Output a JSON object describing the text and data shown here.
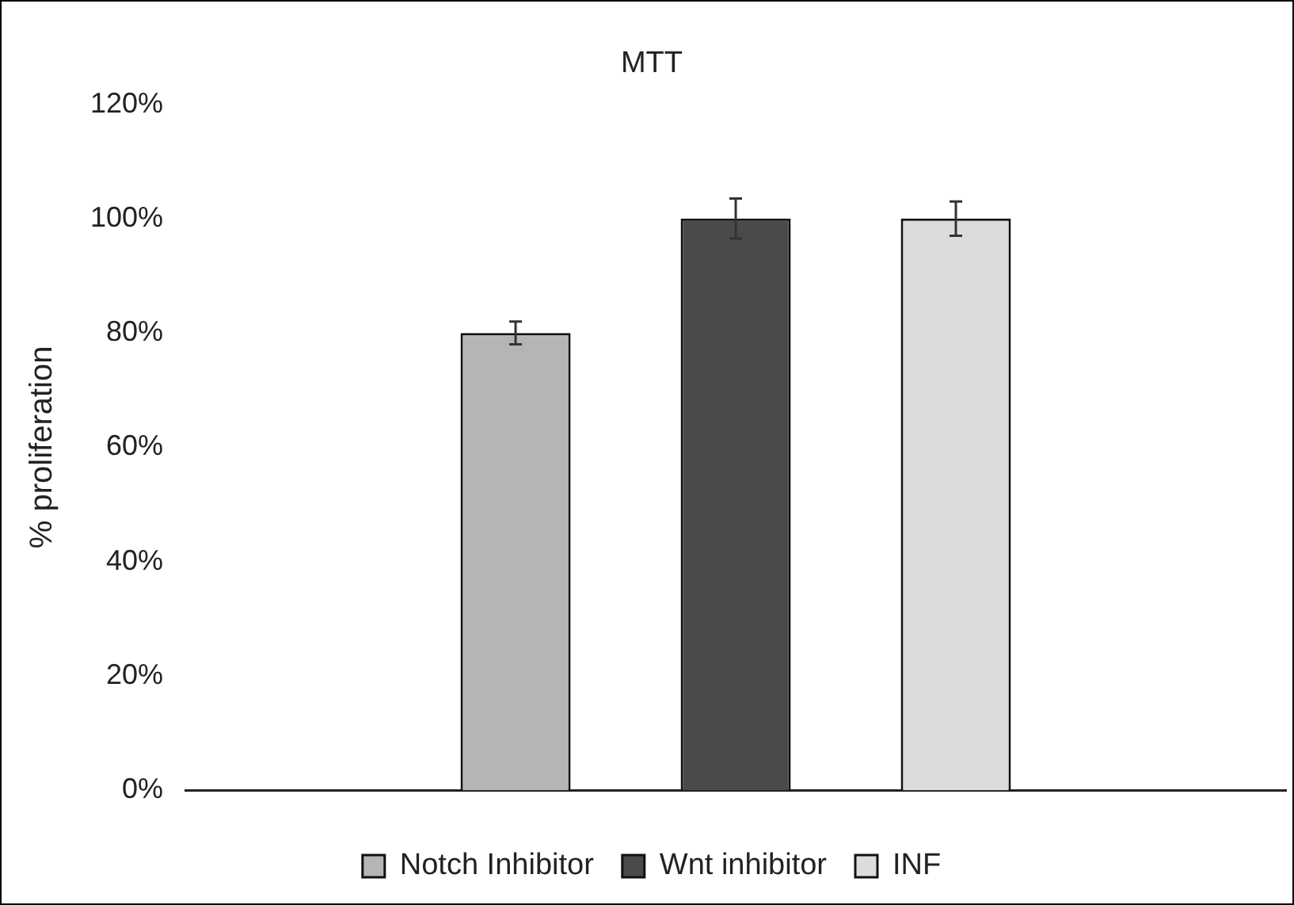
{
  "chart_data": {
    "type": "bar",
    "title": "MTT",
    "ylabel": "% proliferation",
    "categories": [
      null
    ],
    "series": [
      {
        "name": "Notch Inhibitor",
        "color": "#b5b5b5",
        "values": [
          80
        ],
        "errors": [
          2
        ]
      },
      {
        "name": "Wnt inhibitor",
        "color": "#4a4a4a",
        "values": [
          100
        ],
        "errors": [
          3.5
        ]
      },
      {
        "name": "INF",
        "color": "#dcdcdc",
        "values": [
          100
        ],
        "errors": [
          3
        ]
      }
    ],
    "ylim": [
      0,
      120
    ],
    "yticks": [
      {
        "value": 0,
        "label": "0%"
      },
      {
        "value": 20,
        "label": "20%"
      },
      {
        "value": 40,
        "label": "40%"
      },
      {
        "value": 60,
        "label": "60%"
      },
      {
        "value": 80,
        "label": "80%"
      },
      {
        "value": 100,
        "label": "100%"
      },
      {
        "value": 120,
        "label": "120%"
      }
    ],
    "grid": false,
    "legend": "bottom"
  }
}
